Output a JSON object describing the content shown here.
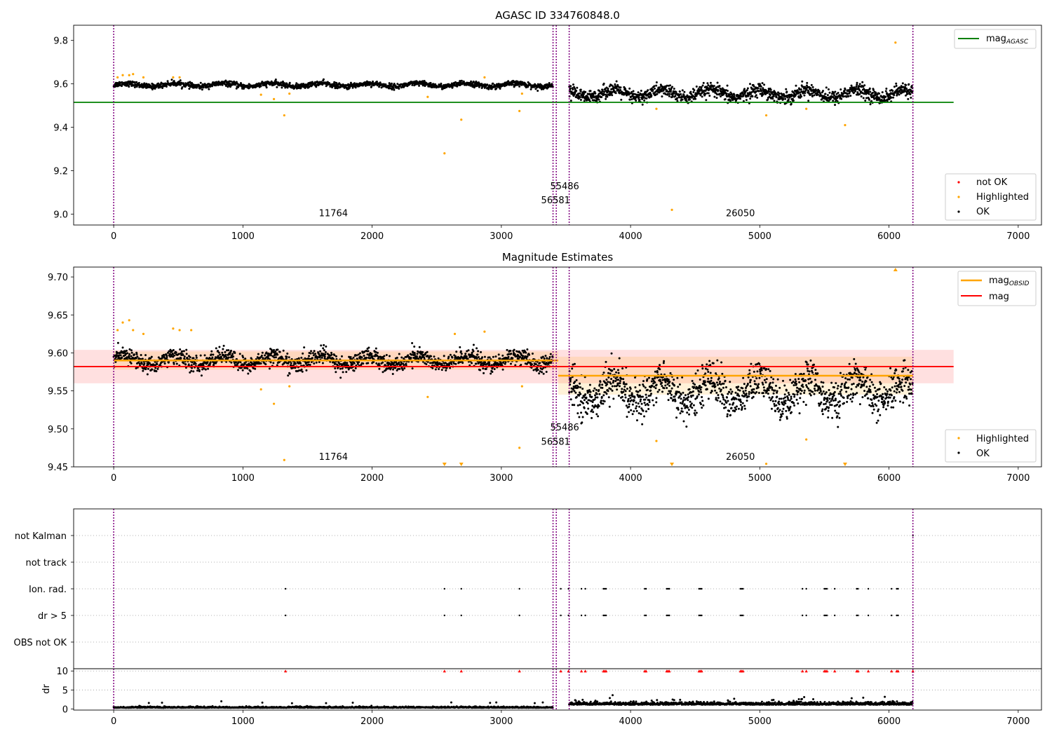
{
  "figure_title": "AGASC ID 334760848.0",
  "colors": {
    "ok": "#000000",
    "highlighted": "#ffa500",
    "not_ok": "#ff0000",
    "agasc": "#008000",
    "mag": "#ff0000",
    "obsid": "#ffa500",
    "vline": "#800080"
  },
  "chart_data": [
    {
      "id": "top",
      "type": "scatter",
      "title": "AGASC ID 334760848.0",
      "xlim": [
        -310,
        7180
      ],
      "ylim": [
        8.95,
        9.87
      ],
      "xticks": [
        0,
        1000,
        2000,
        3000,
        4000,
        5000,
        6000,
        7000
      ],
      "yticks": [
        9.0,
        9.2,
        9.4,
        9.6,
        9.8
      ],
      "ytick_labels": [
        "9.0",
        "9.2",
        "9.4",
        "9.6",
        "9.8"
      ],
      "vlines": [
        0,
        3400,
        3425,
        3525,
        6185
      ],
      "hline": {
        "name": "mag_AGASC",
        "value": 9.515,
        "x0": -310,
        "x1": 6500
      },
      "annotations": [
        {
          "text": "11764",
          "x": 1700,
          "y": 8.99
        },
        {
          "text": "55486",
          "x": 3490,
          "y": 9.115
        },
        {
          "text": "56581",
          "x": 3420,
          "y": 9.05
        },
        {
          "text": "26050",
          "x": 4850,
          "y": 8.99
        }
      ],
      "series": [
        {
          "name": "OK",
          "segments": [
            {
              "x0": 0,
              "x1": 3400,
              "baseline": 9.595,
              "spread": 0.012,
              "n": 1500
            },
            {
              "x0": 3525,
              "x1": 6185,
              "baseline": 9.555,
              "spread": 0.03,
              "n": 1300
            }
          ]
        },
        {
          "name": "Highlighted",
          "points": [
            [
              30,
              9.63
            ],
            [
              70,
              9.64
            ],
            [
              120,
              9.64
            ],
            [
              150,
              9.645
            ],
            [
              230,
              9.63
            ],
            [
              460,
              9.63
            ],
            [
              510,
              9.63
            ],
            [
              1140,
              9.55
            ],
            [
              1240,
              9.53
            ],
            [
              1320,
              9.455
            ],
            [
              1360,
              9.555
            ],
            [
              2430,
              9.54
            ],
            [
              2560,
              9.28
            ],
            [
              2690,
              9.435
            ],
            [
              2870,
              9.63
            ],
            [
              3140,
              9.475
            ],
            [
              3160,
              9.555
            ],
            [
              4200,
              9.485
            ],
            [
              4320,
              9.02
            ],
            [
              5050,
              9.455
            ],
            [
              5360,
              9.485
            ],
            [
              5660,
              9.41
            ],
            [
              6050,
              9.79
            ]
          ]
        },
        {
          "name": "not OK",
          "points": []
        }
      ],
      "legend": [
        {
          "label": "mag",
          "sub": "AGASC"
        }
      ],
      "legend_markers": [
        {
          "label": "not OK"
        },
        {
          "label": "Highlighted"
        },
        {
          "label": "OK"
        }
      ]
    },
    {
      "id": "middle",
      "type": "scatter",
      "title": "Magnitude Estimates",
      "xlim": [
        -310,
        7180
      ],
      "ylim": [
        9.45,
        9.713
      ],
      "xticks": [
        0,
        1000,
        2000,
        3000,
        4000,
        5000,
        6000,
        7000
      ],
      "yticks": [
        9.45,
        9.5,
        9.55,
        9.6,
        9.65,
        9.7
      ],
      "ytick_labels": [
        "9.45",
        "9.50",
        "9.55",
        "9.60",
        "9.65",
        "9.70"
      ],
      "vlines": [
        0,
        3400,
        3425,
        3525,
        6185
      ],
      "mag_band": {
        "value": 9.582,
        "low": 9.56,
        "high": 9.604,
        "x0": -310,
        "x1": 6500
      },
      "obsid_segments": [
        {
          "x0": 0,
          "x1": 3440,
          "value": 9.59,
          "low": 9.578,
          "high": 9.602
        },
        {
          "x0": 3440,
          "x1": 6185,
          "value": 9.57,
          "low": 9.545,
          "high": 9.595
        }
      ],
      "annotations": [
        {
          "text": "11764",
          "x": 1700,
          "y": 9.459
        },
        {
          "text": "55486",
          "x": 3490,
          "y": 9.498
        },
        {
          "text": "56581",
          "x": 3420,
          "y": 9.479
        },
        {
          "text": "26050",
          "x": 4850,
          "y": 9.459
        }
      ],
      "series": [
        {
          "name": "OK",
          "segments": [
            {
              "x0": 0,
              "x1": 3400,
              "baseline": 9.59,
              "spread": 0.011,
              "n": 1500
            },
            {
              "x0": 3525,
              "x1": 6185,
              "baseline": 9.55,
              "spread": 0.025,
              "n": 1300
            }
          ]
        },
        {
          "name": "Highlighted",
          "points": [
            [
              30,
              9.63
            ],
            [
              70,
              9.64
            ],
            [
              120,
              9.643
            ],
            [
              150,
              9.63
            ],
            [
              230,
              9.625
            ],
            [
              460,
              9.632
            ],
            [
              510,
              9.63
            ],
            [
              600,
              9.63
            ],
            [
              1140,
              9.552
            ],
            [
              1240,
              9.533
            ],
            [
              1320,
              9.459
            ],
            [
              1360,
              9.556
            ],
            [
              2430,
              9.542
            ],
            [
              2640,
              9.625
            ],
            [
              2870,
              9.628
            ],
            [
              3140,
              9.475
            ],
            [
              3160,
              9.556
            ],
            [
              4200,
              9.484
            ],
            [
              5050,
              9.454
            ],
            [
              5360,
              9.486
            ]
          ]
        }
      ],
      "offscale": {
        "below": [
          2560,
          2690,
          4320,
          5660
        ],
        "above": [
          6050
        ]
      },
      "legend": [
        {
          "label": "mag",
          "sub": "OBSID"
        },
        {
          "label": "mag",
          "sub": ""
        }
      ],
      "legend_markers": [
        {
          "label": "Highlighted"
        },
        {
          "label": "OK"
        }
      ]
    },
    {
      "id": "flags",
      "type": "scatter",
      "xlim": [
        -310,
        7180
      ],
      "categories": [
        "not Kalman",
        "not track",
        "Ion. rad.",
        "dr > 5",
        "OBS not OK"
      ],
      "vlines": [
        0,
        3400,
        3425,
        3525,
        6185
      ],
      "flag_points": {
        "not Kalman": [
          6185
        ],
        "Ion. rad.": [
          1330,
          2560,
          2690,
          3140,
          3460,
          3520,
          3620,
          3650,
          3790,
          3800,
          3810,
          4110,
          4120,
          4280,
          4290,
          4300,
          4530,
          4540,
          4550,
          4850,
          4860,
          4870,
          5330,
          5360,
          5500,
          5510,
          5520,
          5580,
          5750,
          5760,
          5840,
          6020,
          6060,
          6070
        ],
        "dr > 5": [
          1330,
          2560,
          2690,
          3140,
          3460,
          3520,
          3620,
          3650,
          3790,
          3800,
          3810,
          4110,
          4120,
          4280,
          4290,
          4300,
          4530,
          4540,
          4550,
          4850,
          4860,
          4870,
          5330,
          5360,
          5500,
          5510,
          5520,
          5580,
          5750,
          5760,
          5840,
          6020,
          6060,
          6070
        ]
      }
    },
    {
      "id": "dr",
      "type": "scatter",
      "ylabel": "dr",
      "xlim": [
        -310,
        7180
      ],
      "ylim": [
        -0.3,
        10.6
      ],
      "xticks": [
        0,
        1000,
        2000,
        3000,
        4000,
        5000,
        6000,
        7000
      ],
      "yticks": [
        0,
        5,
        10
      ],
      "ytick_labels": [
        "0",
        "5",
        "10"
      ],
      "vlines": [
        0,
        3400,
        3425,
        3525,
        6185
      ],
      "series": [
        {
          "name": "OK",
          "segments": [
            {
              "x0": 0,
              "x1": 3400,
              "baseline": 0.3,
              "spread": 0.15,
              "n": 1200
            },
            {
              "x0": 3525,
              "x1": 6185,
              "baseline": 1.1,
              "spread": 0.35,
              "n": 1100
            }
          ]
        }
      ],
      "capped_points": [
        1330,
        2560,
        2690,
        3140,
        3460,
        3520,
        3620,
        3650,
        3790,
        3800,
        3810,
        4110,
        4120,
        4280,
        4290,
        4300,
        4530,
        4540,
        4550,
        4850,
        4860,
        4870,
        5330,
        5360,
        5500,
        5510,
        5520,
        5580,
        5750,
        5760,
        5840,
        6020,
        6060,
        6070,
        6185
      ]
    }
  ]
}
